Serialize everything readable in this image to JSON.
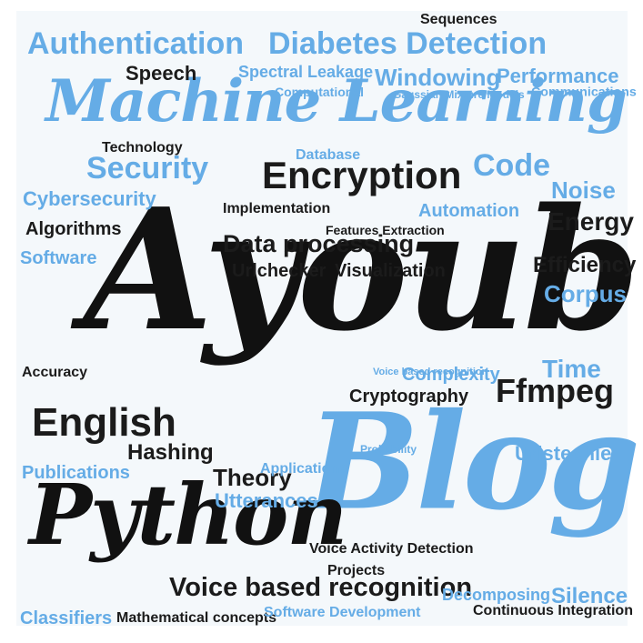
{
  "colors": {
    "blue": "#65ace6",
    "dark": "#1b1b1b",
    "background": "#f4f8fb"
  },
  "words": [
    "Ayoub",
    "Blog",
    "Machine Learning",
    "Python",
    "Encryption",
    "Authentication",
    "Diabetes Detection",
    "Voice based recognition",
    "English",
    "Data processing",
    "Security",
    "Code",
    "Cryptography",
    "Ffmpeg",
    "Windowing",
    "Spectral Leakage",
    "Performance",
    "Hashing",
    "Theory",
    "Speech",
    "Database",
    "Automation",
    "Cybersecurity",
    "Urlchecker",
    "Visualization",
    "Implementation",
    "Technology",
    "Noise",
    "Energy",
    "Time",
    "Corpus",
    "Efficiency",
    "Utterances",
    "Projects",
    "Voice Activity Detection",
    "Continuous Integration",
    "Silence",
    "Classifiers",
    "Publications",
    "Communications",
    "Algorithms",
    "Software",
    "Features Extraction",
    "Mathematical concepts",
    "Decomposing",
    "Complexity",
    "Sequences",
    "Software Development",
    "Urlstechie",
    "Applications",
    "Accuracy",
    "Probability",
    "Gaussian Mixture Models",
    "Computational",
    "Voice based recognition"
  ]
}
